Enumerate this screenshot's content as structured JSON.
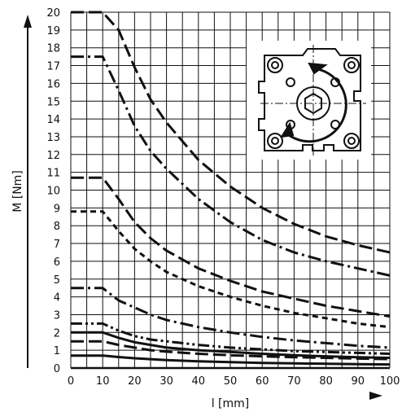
{
  "chart_data": {
    "type": "line",
    "title": "",
    "xlabel": "l [mm]",
    "ylabel": "M [Nm]",
    "xlim": [
      0,
      100
    ],
    "ylim": [
      0,
      20
    ],
    "x_ticks": [
      0,
      10,
      20,
      30,
      40,
      50,
      60,
      70,
      80,
      90,
      100
    ],
    "y_ticks": [
      0,
      1,
      2,
      3,
      4,
      5,
      6,
      7,
      8,
      9,
      10,
      11,
      12,
      13,
      14,
      15,
      16,
      17,
      18,
      19,
      20
    ],
    "grid": true,
    "legend": "none",
    "inset": "rotary actuator drawing (top-right)",
    "series": [
      {
        "style": "dashed",
        "values": [
          [
            0,
            20
          ],
          [
            10,
            20
          ],
          [
            15,
            19
          ],
          [
            20,
            16.9
          ],
          [
            25,
            15.1
          ],
          [
            30,
            13.8
          ],
          [
            40,
            11.7
          ],
          [
            50,
            10.2
          ],
          [
            60,
            9.0
          ],
          [
            70,
            8.1
          ],
          [
            80,
            7.4
          ],
          [
            90,
            6.9
          ],
          [
            100,
            6.5
          ]
        ]
      },
      {
        "style": "dash-dot",
        "values": [
          [
            0,
            17.5
          ],
          [
            10,
            17.5
          ],
          [
            15,
            15.6
          ],
          [
            20,
            13.6
          ],
          [
            25,
            12.2
          ],
          [
            30,
            11.2
          ],
          [
            40,
            9.5
          ],
          [
            50,
            8.2
          ],
          [
            60,
            7.2
          ],
          [
            70,
            6.5
          ],
          [
            80,
            6.0
          ],
          [
            90,
            5.6
          ],
          [
            100,
            5.2
          ]
        ]
      },
      {
        "style": "dashed",
        "values": [
          [
            0,
            10.7
          ],
          [
            10,
            10.7
          ],
          [
            15,
            9.5
          ],
          [
            20,
            8.2
          ],
          [
            25,
            7.3
          ],
          [
            30,
            6.6
          ],
          [
            40,
            5.6
          ],
          [
            50,
            4.9
          ],
          [
            60,
            4.3
          ],
          [
            70,
            3.9
          ],
          [
            80,
            3.5
          ],
          [
            90,
            3.2
          ],
          [
            100,
            2.9
          ]
        ]
      },
      {
        "style": "short-dash",
        "values": [
          [
            0,
            8.8
          ],
          [
            10,
            8.8
          ],
          [
            15,
            7.7
          ],
          [
            20,
            6.7
          ],
          [
            25,
            6.0
          ],
          [
            30,
            5.4
          ],
          [
            40,
            4.6
          ],
          [
            50,
            4.0
          ],
          [
            60,
            3.5
          ],
          [
            70,
            3.1
          ],
          [
            80,
            2.8
          ],
          [
            90,
            2.5
          ],
          [
            100,
            2.3
          ]
        ]
      },
      {
        "style": "dash-dot",
        "values": [
          [
            0,
            4.5
          ],
          [
            10,
            4.5
          ],
          [
            15,
            3.8
          ],
          [
            20,
            3.4
          ],
          [
            25,
            3.0
          ],
          [
            30,
            2.7
          ],
          [
            40,
            2.3
          ],
          [
            50,
            2.0
          ],
          [
            60,
            1.75
          ],
          [
            70,
            1.55
          ],
          [
            80,
            1.4
          ],
          [
            90,
            1.25
          ],
          [
            100,
            1.15
          ]
        ]
      },
      {
        "style": "dash-dot-dot",
        "values": [
          [
            0,
            2.5
          ],
          [
            10,
            2.5
          ],
          [
            15,
            2.1
          ],
          [
            20,
            1.8
          ],
          [
            25,
            1.6
          ],
          [
            30,
            1.5
          ],
          [
            40,
            1.3
          ],
          [
            50,
            1.15
          ],
          [
            60,
            1.05
          ],
          [
            70,
            0.95
          ],
          [
            80,
            0.9
          ],
          [
            90,
            0.85
          ],
          [
            100,
            0.8
          ]
        ]
      },
      {
        "style": "solid",
        "values": [
          [
            0,
            2.0
          ],
          [
            10,
            2.0
          ],
          [
            15,
            1.7
          ],
          [
            20,
            1.45
          ],
          [
            25,
            1.3
          ],
          [
            30,
            1.15
          ],
          [
            40,
            1.0
          ],
          [
            50,
            0.9
          ],
          [
            60,
            0.8
          ],
          [
            70,
            0.72
          ],
          [
            80,
            0.66
          ],
          [
            90,
            0.61
          ],
          [
            100,
            0.57
          ]
        ]
      },
      {
        "style": "dashed",
        "values": [
          [
            0,
            1.5
          ],
          [
            10,
            1.5
          ],
          [
            15,
            1.3
          ],
          [
            20,
            1.15
          ],
          [
            25,
            1.0
          ],
          [
            30,
            0.92
          ],
          [
            40,
            0.8
          ],
          [
            50,
            0.72
          ],
          [
            60,
            0.66
          ],
          [
            70,
            0.61
          ],
          [
            80,
            0.57
          ],
          [
            90,
            0.53
          ],
          [
            100,
            0.5
          ]
        ]
      },
      {
        "style": "solid",
        "values": [
          [
            0,
            0.7
          ],
          [
            10,
            0.7
          ],
          [
            15,
            0.62
          ],
          [
            20,
            0.55
          ],
          [
            25,
            0.5
          ],
          [
            30,
            0.45
          ],
          [
            40,
            0.38
          ],
          [
            50,
            0.33
          ],
          [
            60,
            0.29
          ],
          [
            70,
            0.26
          ],
          [
            80,
            0.24
          ],
          [
            90,
            0.22
          ],
          [
            100,
            0.2
          ]
        ]
      }
    ]
  }
}
